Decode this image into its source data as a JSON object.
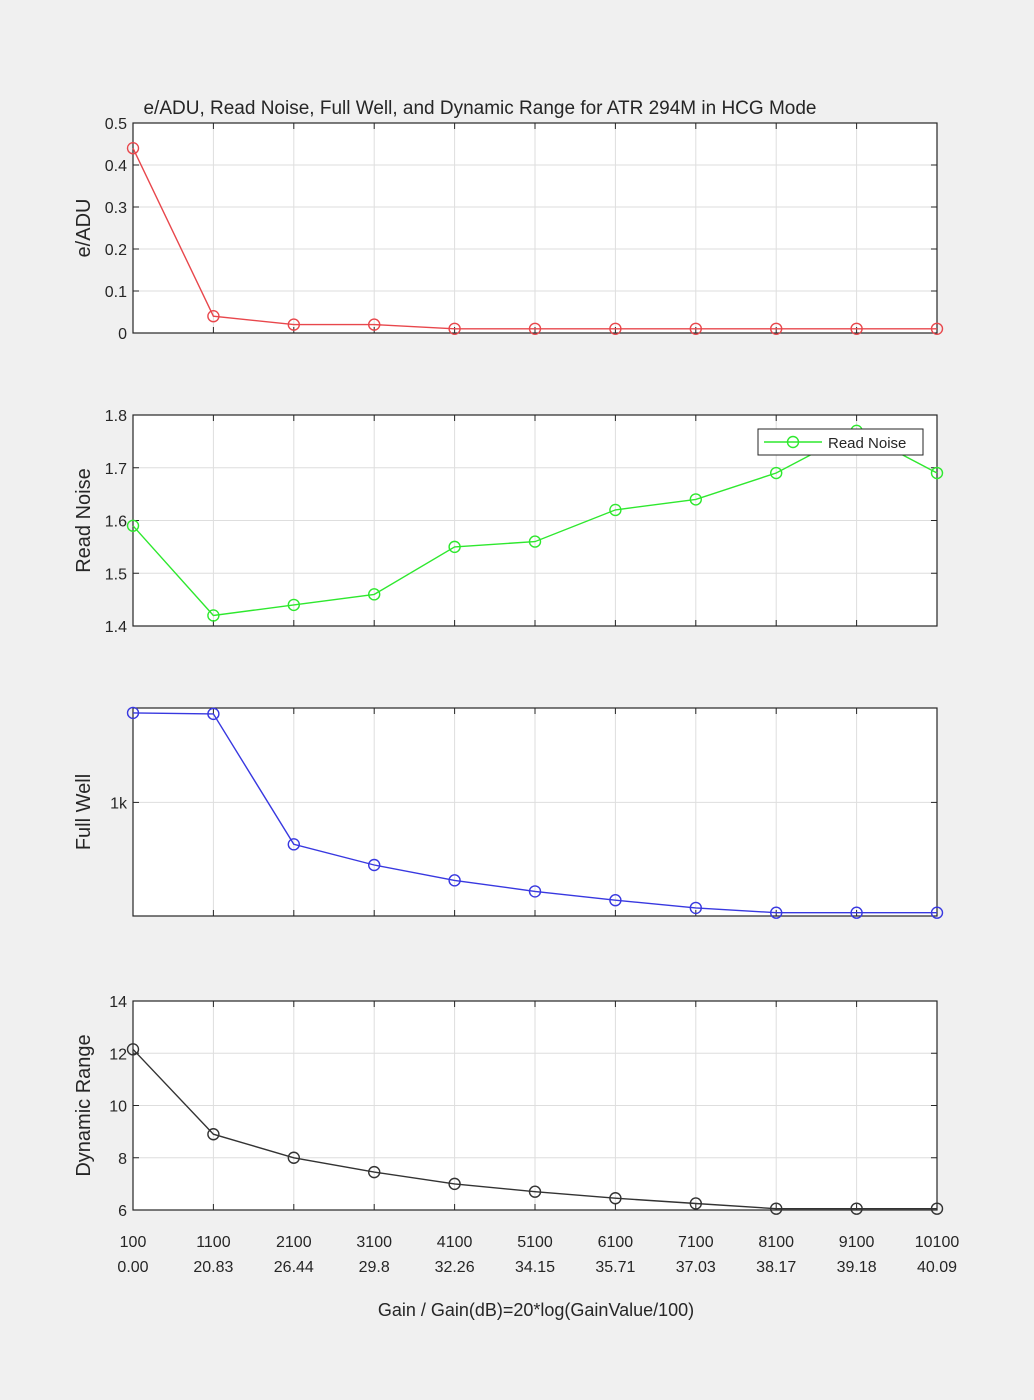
{
  "figure": {
    "title": "e/ADU, Read Noise, Full Well, and Dynamic Range for ATR 294M in HCG Mode",
    "xlabel": "Gain / Gain(dB)=20*log(GainValue/100)",
    "x_gain_labels": [
      "100",
      "1100",
      "2100",
      "3100",
      "4100",
      "5100",
      "6100",
      "7100",
      "8100",
      "9100",
      "10100"
    ],
    "x_db_labels": [
      "0.00",
      "20.83",
      "26.44",
      "29.8",
      "32.26",
      "34.15",
      "35.71",
      "37.03",
      "38.17",
      "39.18",
      "40.09"
    ]
  },
  "chart_data": [
    {
      "type": "line",
      "x": [
        100,
        1100,
        2100,
        3100,
        4100,
        5100,
        6100,
        7100,
        8100,
        9100,
        10100
      ],
      "series": [
        {
          "values": [
            0.44,
            0.04,
            0.02,
            0.02,
            0.01,
            0.01,
            0.01,
            0.01,
            0.01,
            0.01,
            0.01
          ],
          "color": "#e8474c"
        }
      ],
      "ylabel": "e/ADU",
      "ylim": [
        0,
        0.5
      ],
      "yticks": [
        0,
        0.1,
        0.2,
        0.3,
        0.4,
        0.5
      ],
      "ytick_labels": [
        "0",
        "0.1",
        "0.2",
        "0.3",
        "0.4",
        "0.5"
      ],
      "grid": true
    },
    {
      "type": "line",
      "x": [
        100,
        1100,
        2100,
        3100,
        4100,
        5100,
        6100,
        7100,
        8100,
        9100,
        10100
      ],
      "series": [
        {
          "name": "Read Noise",
          "values": [
            1.59,
            1.42,
            1.44,
            1.46,
            1.55,
            1.56,
            1.62,
            1.64,
            1.69,
            1.77,
            1.69
          ],
          "color": "#2ee82e"
        }
      ],
      "ylabel": "Read Noise",
      "ylim": [
        1.4,
        1.8
      ],
      "yticks": [
        1.4,
        1.5,
        1.6,
        1.7,
        1.8
      ],
      "ytick_labels": [
        "1.4",
        "1.5",
        "1.6",
        "1.7",
        "1.8"
      ],
      "legend": "top-right",
      "grid": true
    },
    {
      "type": "line",
      "x": [
        100,
        1100,
        2100,
        3100,
        4100,
        5100,
        6100,
        7100,
        8100,
        9100,
        10100
      ],
      "series": [
        {
          "values": [
            1700,
            1690,
            780,
            690,
            630,
            590,
            560,
            535,
            520,
            520,
            520
          ],
          "color": "#3838e0"
        }
      ],
      "ylabel": "Full Well",
      "yscale": "log",
      "ylim": [
        510,
        1750
      ],
      "yticks": [
        1000
      ],
      "ytick_labels": [
        "1k"
      ],
      "grid": true
    },
    {
      "type": "line",
      "x": [
        100,
        1100,
        2100,
        3100,
        4100,
        5100,
        6100,
        7100,
        8100,
        9100,
        10100
      ],
      "series": [
        {
          "values": [
            12.15,
            8.9,
            8.0,
            7.45,
            7.0,
            6.7,
            6.45,
            6.25,
            6.05,
            6.05,
            6.05
          ],
          "color": "#333333"
        }
      ],
      "ylabel": "Dynamic Range",
      "ylim": [
        6,
        14
      ],
      "yticks": [
        6,
        8,
        10,
        12,
        14
      ],
      "ytick_labels": [
        "6",
        "8",
        "10",
        "12",
        "14"
      ],
      "grid": true
    }
  ]
}
